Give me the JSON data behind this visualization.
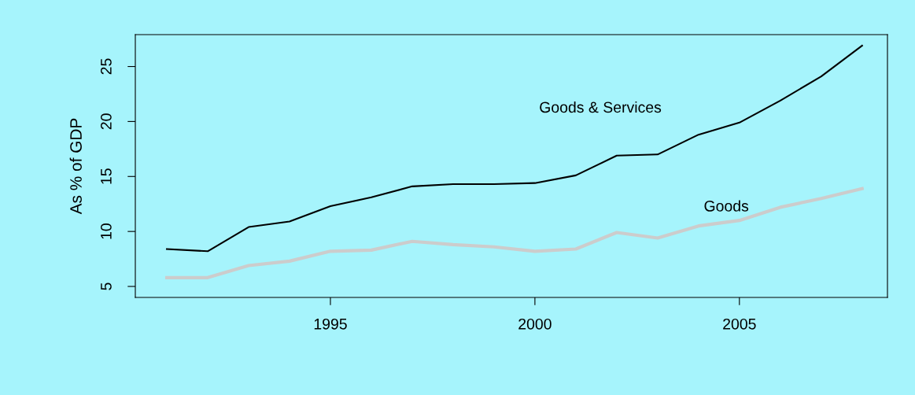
{
  "chart_data": {
    "type": "line",
    "ylabel": "As % of GDP",
    "x": [
      1991,
      1992,
      1993,
      1994,
      1995,
      1996,
      1997,
      1998,
      1999,
      2000,
      2001,
      2002,
      2003,
      2004,
      2005,
      2006,
      2007,
      2008
    ],
    "series": [
      {
        "name": "Goods & Services",
        "color": "#000000",
        "values": [
          8.4,
          8.2,
          10.4,
          10.9,
          12.3,
          13.1,
          14.1,
          14.3,
          14.3,
          14.4,
          15.1,
          16.9,
          17.0,
          18.8,
          19.9,
          21.9,
          24.1,
          26.9
        ]
      },
      {
        "name": "Goods",
        "color": "#cccccc",
        "values": [
          5.8,
          5.8,
          6.9,
          7.3,
          8.2,
          8.3,
          9.1,
          8.8,
          8.6,
          8.2,
          8.4,
          9.9,
          9.4,
          10.5,
          11.0,
          12.2,
          13.0,
          13.9
        ]
      }
    ],
    "xlim": [
      1990.23,
      2008.62
    ],
    "ylim": [
      4.0,
      27.9
    ],
    "xticks": [
      1995,
      2000,
      2005
    ],
    "yticks": [
      5,
      10,
      15,
      20,
      25
    ],
    "grid": false,
    "legend": false
  }
}
